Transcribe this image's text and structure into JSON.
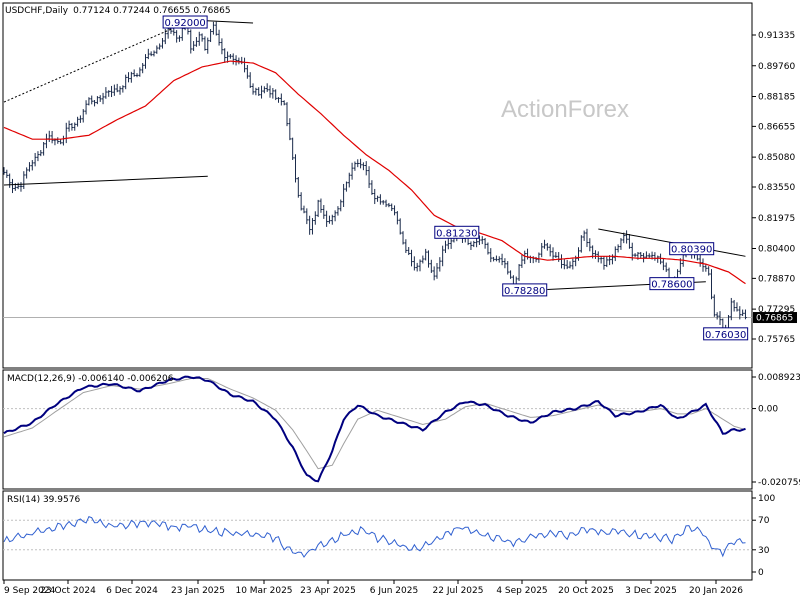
{
  "header": {
    "symbol": "USDCHF,Daily",
    "quote": "0.77124 0.77244 0.76655 0.76865"
  },
  "watermark": "ActionForex",
  "colors": {
    "bars": "#1a2a4a",
    "ma": "#e00000",
    "macd": "#00007f",
    "signal": "#a0a0a0",
    "rsi": "#3060d0",
    "box": "#000080"
  },
  "chart_data": [
    {
      "type": "ohlc-bar",
      "title": "USDCHF,Daily",
      "x": [
        "9 Sep 2024",
        "23 Oct 2024",
        "6 Dec 2024",
        "23 Jan 2025",
        "10 Mar 2025",
        "23 Apr 2025",
        "6 Jun 2025",
        "22 Jul 2025",
        "4 Sep 2025",
        "20 Oct 2025",
        "3 Dec 2025",
        "20 Jan 2026"
      ],
      "anchors": [
        [
          0,
          0.843
        ],
        [
          3,
          0.835
        ],
        [
          6,
          0.838
        ],
        [
          10,
          0.848
        ],
        [
          15,
          0.86
        ],
        [
          20,
          0.86
        ],
        [
          26,
          0.87
        ],
        [
          30,
          0.879
        ],
        [
          36,
          0.883
        ],
        [
          42,
          0.888
        ],
        [
          48,
          0.896
        ],
        [
          54,
          0.908
        ],
        [
          58,
          0.915
        ],
        [
          62,
          0.913
        ],
        [
          64,
          0.92
        ],
        [
          66,
          0.906
        ],
        [
          69,
          0.915
        ],
        [
          71,
          0.906
        ],
        [
          74,
          0.918
        ],
        [
          78,
          0.9
        ],
        [
          81,
          0.903
        ],
        [
          84,
          0.9
        ],
        [
          87,
          0.886
        ],
        [
          90,
          0.885
        ],
        [
          95,
          0.884
        ],
        [
          99,
          0.877
        ],
        [
          102,
          0.85
        ],
        [
          105,
          0.825
        ],
        [
          108,
          0.813
        ],
        [
          111,
          0.828
        ],
        [
          114,
          0.818
        ],
        [
          118,
          0.824
        ],
        [
          121,
          0.838
        ],
        [
          124,
          0.85
        ],
        [
          127,
          0.846
        ],
        [
          130,
          0.834
        ],
        [
          134,
          0.827
        ],
        [
          138,
          0.825
        ],
        [
          141,
          0.805
        ],
        [
          145,
          0.795
        ],
        [
          149,
          0.8
        ],
        [
          152,
          0.792
        ],
        [
          156,
          0.805
        ],
        [
          160,
          0.8123
        ],
        [
          164,
          0.806
        ],
        [
          168,
          0.808
        ],
        [
          172,
          0.8
        ],
        [
          176,
          0.796
        ],
        [
          180,
          0.787
        ],
        [
          184,
          0.8
        ],
        [
          188,
          0.799
        ],
        [
          192,
          0.806
        ],
        [
          195,
          0.799
        ],
        [
          198,
          0.794
        ],
        [
          202,
          0.8
        ],
        [
          205,
          0.811
        ],
        [
          209,
          0.801
        ],
        [
          212,
          0.795
        ],
        [
          216,
          0.803
        ],
        [
          219,
          0.81
        ],
        [
          222,
          0.803
        ],
        [
          226,
          0.799
        ],
        [
          229,
          0.803
        ],
        [
          232,
          0.796
        ],
        [
          236,
          0.788
        ],
        [
          238,
          0.792
        ],
        [
          240,
          0.801
        ],
        [
          243,
          0.8039
        ],
        [
          246,
          0.796
        ],
        [
          249,
          0.792
        ],
        [
          251,
          0.77
        ],
        [
          253,
          0.765
        ],
        [
          255,
          0.7603
        ],
        [
          257,
          0.778
        ],
        [
          260,
          0.77
        ],
        [
          262,
          0.7687
        ]
      ],
      "price_axis": {
        "ticks": [
          "0.91335",
          "0.89760",
          "0.88185",
          "0.86655",
          "0.85080",
          "0.83550",
          "0.81975",
          "0.80400",
          "0.78870",
          "0.77295",
          "0.75765"
        ],
        "last": "0.76865"
      },
      "moving_average_anchors": [
        [
          0,
          0.866
        ],
        [
          10,
          0.86
        ],
        [
          20,
          0.86
        ],
        [
          30,
          0.862
        ],
        [
          40,
          0.87
        ],
        [
          50,
          0.877
        ],
        [
          60,
          0.89
        ],
        [
          70,
          0.897
        ],
        [
          80,
          0.9
        ],
        [
          88,
          0.899
        ],
        [
          96,
          0.894
        ],
        [
          104,
          0.883
        ],
        [
          112,
          0.873
        ],
        [
          120,
          0.862
        ],
        [
          128,
          0.852
        ],
        [
          136,
          0.844
        ],
        [
          144,
          0.834
        ],
        [
          152,
          0.821
        ],
        [
          160,
          0.815
        ],
        [
          168,
          0.812
        ],
        [
          176,
          0.808
        ],
        [
          184,
          0.8
        ],
        [
          192,
          0.798
        ],
        [
          200,
          0.799
        ],
        [
          208,
          0.8
        ],
        [
          216,
          0.8
        ],
        [
          224,
          0.799
        ],
        [
          232,
          0.799
        ],
        [
          240,
          0.798
        ],
        [
          248,
          0.796
        ],
        [
          256,
          0.792
        ],
        [
          262,
          0.786
        ]
      ],
      "level_labels": [
        {
          "text": "0.92000",
          "i": 64,
          "y": 0.92
        },
        {
          "text": "0.81230",
          "i": 160,
          "y": 0.8123
        },
        {
          "text": "0.80390",
          "i": 243,
          "y": 0.8039
        },
        {
          "text": "0.78280",
          "i": 184,
          "y": 0.7828
        },
        {
          "text": "0.78600",
          "i": 236,
          "y": 0.786
        },
        {
          "text": "0.76030",
          "i": 255,
          "y": 0.7603
        }
      ],
      "trendlines": [
        {
          "style": "solid",
          "from": [
            0,
            0.8365
          ],
          "to": [
            72,
            0.841
          ]
        },
        {
          "style": "solid",
          "from": [
            60,
            0.9215
          ],
          "to": [
            88,
            0.9195
          ]
        },
        {
          "style": "dotted",
          "from": [
            0,
            0.879
          ],
          "to": [
            64,
            0.9195
          ]
        },
        {
          "style": "solid",
          "from": [
            210,
            0.814
          ],
          "to": [
            262,
            0.8
          ]
        },
        {
          "style": "solid",
          "from": [
            192,
            0.783
          ],
          "to": [
            248,
            0.787
          ]
        }
      ]
    },
    {
      "type": "line",
      "title": "MACD(12,26,9) -0.006140 -0.006206",
      "series": [
        {
          "name": "MACD",
          "anchors": [
            [
              0,
              -0.007
            ],
            [
              10,
              -0.004
            ],
            [
              18,
              0.001
            ],
            [
              28,
              0.006
            ],
            [
              38,
              0.007
            ],
            [
              48,
              0.005
            ],
            [
              58,
              0.008
            ],
            [
              66,
              0.009
            ],
            [
              72,
              0.008
            ],
            [
              80,
              0.004
            ],
            [
              88,
              0.002
            ],
            [
              96,
              -0.003
            ],
            [
              102,
              -0.011
            ],
            [
              107,
              -0.019
            ],
            [
              111,
              -0.0205
            ],
            [
              116,
              -0.012
            ],
            [
              120,
              -0.003
            ],
            [
              125,
              0.001
            ],
            [
              132,
              -0.002
            ],
            [
              140,
              -0.004
            ],
            [
              148,
              -0.006
            ],
            [
              156,
              -0.001
            ],
            [
              163,
              0.002
            ],
            [
              170,
              0.001
            ],
            [
              178,
              -0.002
            ],
            [
              186,
              -0.004
            ],
            [
              194,
              -0.001
            ],
            [
              202,
              0.0
            ],
            [
              210,
              0.002
            ],
            [
              216,
              -0.002
            ],
            [
              224,
              -0.001
            ],
            [
              232,
              0.001
            ],
            [
              238,
              -0.003
            ],
            [
              243,
              -0.001
            ],
            [
              248,
              0.001
            ],
            [
              254,
              -0.007
            ],
            [
              258,
              -0.006
            ],
            [
              262,
              -0.006
            ]
          ]
        },
        {
          "name": "Signal",
          "anchors": [
            [
              0,
              -0.008
            ],
            [
              10,
              -0.0055
            ],
            [
              18,
              -0.001
            ],
            [
              28,
              0.0045
            ],
            [
              38,
              0.0065
            ],
            [
              48,
              0.0055
            ],
            [
              58,
              0.007
            ],
            [
              66,
              0.0085
            ],
            [
              72,
              0.0085
            ],
            [
              80,
              0.0055
            ],
            [
              88,
              0.003
            ],
            [
              96,
              -0.0005
            ],
            [
              102,
              -0.006
            ],
            [
              107,
              -0.012
            ],
            [
              111,
              -0.017
            ],
            [
              116,
              -0.016
            ],
            [
              120,
              -0.01
            ],
            [
              125,
              -0.003
            ],
            [
              132,
              -0.0005
            ],
            [
              140,
              -0.0025
            ],
            [
              148,
              -0.0045
            ],
            [
              156,
              -0.003
            ],
            [
              163,
              0.0005
            ],
            [
              170,
              0.0015
            ],
            [
              178,
              -0.0005
            ],
            [
              186,
              -0.0025
            ],
            [
              194,
              -0.002
            ],
            [
              202,
              -0.0005
            ],
            [
              210,
              0.001
            ],
            [
              216,
              -0.0005
            ],
            [
              224,
              -0.001
            ],
            [
              232,
              0.0
            ],
            [
              238,
              -0.0015
            ],
            [
              243,
              -0.0015
            ],
            [
              248,
              0.0
            ],
            [
              254,
              -0.003
            ],
            [
              258,
              -0.005
            ],
            [
              262,
              -0.006
            ]
          ]
        }
      ],
      "axis": {
        "ticks": [
          {
            "label": "0.008923",
            "v": 0.008923
          },
          {
            "label": "0.00",
            "v": 0.0
          },
          {
            "label": "-0.020759",
            "v": -0.020759
          }
        ]
      }
    },
    {
      "type": "line",
      "title": "RSI(14) 39.9576",
      "series": [
        {
          "name": "RSI",
          "anchors": [
            [
              0,
              42
            ],
            [
              8,
              50
            ],
            [
              16,
              58
            ],
            [
              24,
              66
            ],
            [
              30,
              70
            ],
            [
              38,
              62
            ],
            [
              46,
              65
            ],
            [
              54,
              68
            ],
            [
              60,
              60
            ],
            [
              66,
              62
            ],
            [
              72,
              55
            ],
            [
              80,
              54
            ],
            [
              88,
              50
            ],
            [
              96,
              46
            ],
            [
              100,
              32
            ],
            [
              104,
              24
            ],
            [
              108,
              28
            ],
            [
              114,
              40
            ],
            [
              120,
              50
            ],
            [
              126,
              58
            ],
            [
              132,
              46
            ],
            [
              140,
              36
            ],
            [
              146,
              30
            ],
            [
              152,
              42
            ],
            [
              158,
              55
            ],
            [
              162,
              60
            ],
            [
              168,
              52
            ],
            [
              174,
              46
            ],
            [
              180,
              40
            ],
            [
              188,
              50
            ],
            [
              194,
              54
            ],
            [
              200,
              48
            ],
            [
              206,
              58
            ],
            [
              212,
              52
            ],
            [
              218,
              56
            ],
            [
              224,
              50
            ],
            [
              230,
              48
            ],
            [
              236,
              44
            ],
            [
              242,
              60
            ],
            [
              246,
              56
            ],
            [
              250,
              34
            ],
            [
              254,
              26
            ],
            [
              258,
              42
            ],
            [
              262,
              39.96
            ]
          ]
        }
      ],
      "axis": {
        "ticks": [
          {
            "label": "100",
            "v": 100
          },
          {
            "label": "70",
            "v": 70
          },
          {
            "label": "30",
            "v": 30
          },
          {
            "label": "0",
            "v": 0
          }
        ]
      }
    }
  ]
}
